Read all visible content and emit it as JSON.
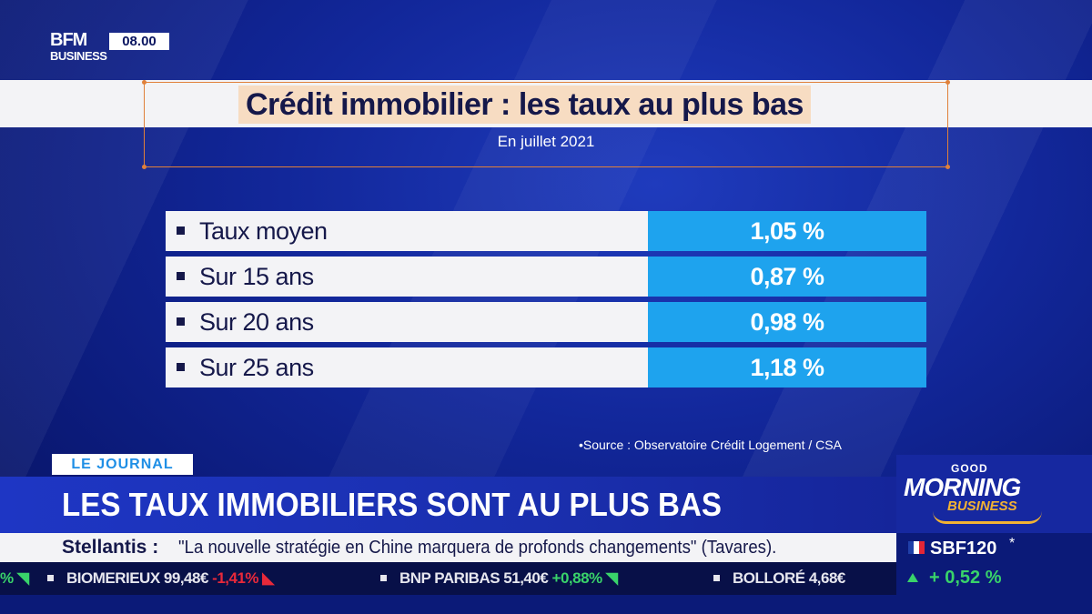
{
  "channel": {
    "logo_top": "BFM",
    "logo_bottom": "BUSINESS",
    "clock": "08.00"
  },
  "graphic": {
    "title": "Crédit immobilier : les taux au plus bas",
    "subtitle": "En juillet 2021",
    "rows": [
      {
        "label": "Taux moyen",
        "value": "1,05 %"
      },
      {
        "label": "Sur 15 ans",
        "value": "0,87 %"
      },
      {
        "label": "Sur 20 ans",
        "value": "0,98 %"
      },
      {
        "label": "Sur 25 ans",
        "value": "1,18 %"
      }
    ],
    "source": "•Source : Observatoire Crédit Logement / CSA"
  },
  "lower_third": {
    "tag": "LE JOURNAL",
    "headline": "LES TAUX IMMOBILIERS SONT AU PLUS BAS",
    "news_company": "Stellantis :",
    "news_text": "\"La nouvelle stratégie en Chine marquera de profonds changements\" (Tavares)."
  },
  "ticker": {
    "lead_fragment": "%",
    "items": [
      {
        "name": "BIOMERIEUX",
        "price": "99,48€",
        "change": "-1,41%",
        "direction": "down"
      },
      {
        "name": "BNP PARIBAS",
        "price": "51,40€",
        "change": "+0,88%",
        "direction": "up"
      },
      {
        "name": "BOLLORÉ",
        "price": "4,68€",
        "change": "",
        "direction": "none"
      }
    ]
  },
  "show": {
    "line1": "GOOD",
    "line2": "MORNING",
    "line3": "BUSINESS"
  },
  "index": {
    "name": "SBF120",
    "marker": "*",
    "change": "+ 0,52 %",
    "direction": "up",
    "flag_colors": [
      "#1f3fa8",
      "#ffffff",
      "#e32636"
    ]
  }
}
